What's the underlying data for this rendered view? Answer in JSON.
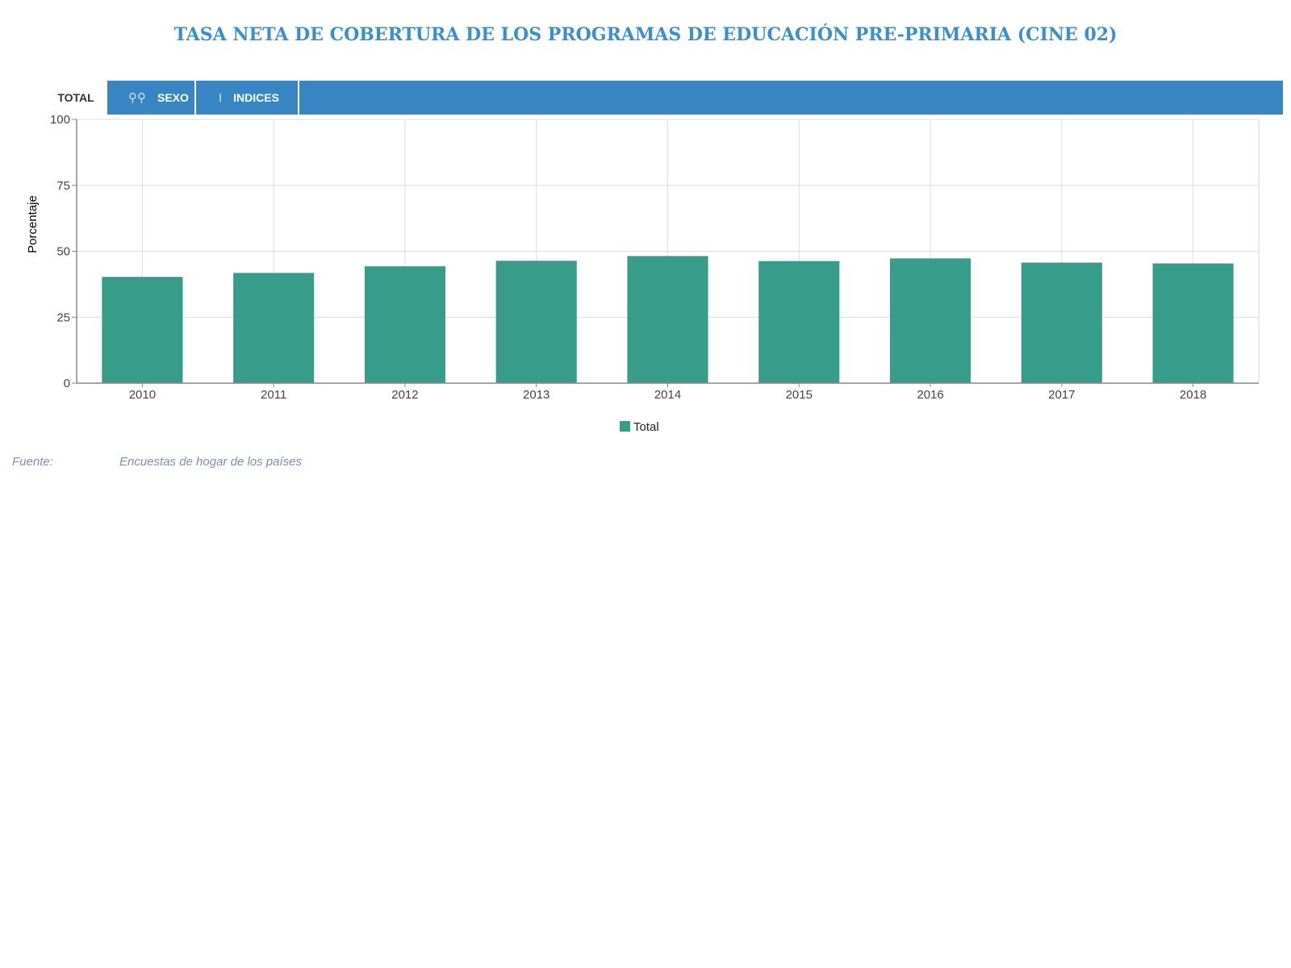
{
  "header": {
    "title": "TASA NETA DE COBERTURA DE LOS PROGRAMAS DE EDUCACIÓN PRE-PRIMARIA (CINE 02)"
  },
  "tabs": [
    {
      "label": "TOTAL",
      "icon": "",
      "active": true
    },
    {
      "label": "SEXO",
      "icon": "gender-icon",
      "active": false
    },
    {
      "label": "INDICES",
      "icon": "cursor-icon",
      "active": false
    }
  ],
  "chart_data": {
    "type": "bar",
    "title": "",
    "xlabel": "",
    "ylabel": "Porcentaje",
    "categories": [
      "2010",
      "2011",
      "2012",
      "2013",
      "2014",
      "2015",
      "2016",
      "2017",
      "2018"
    ],
    "series": [
      {
        "name": "Total",
        "color": "#389c8b",
        "values": [
          40.3,
          41.8,
          44.3,
          46.4,
          48.2,
          46.3,
          47.3,
          45.7,
          45.4
        ]
      }
    ],
    "ylim": [
      0,
      100
    ],
    "yticks": [
      "0",
      "25",
      "50",
      "75",
      "100"
    ],
    "grid": true,
    "legend": "bottom-center"
  },
  "footer": {
    "source_label": "Fuente:",
    "source_value": "Encuestas de hogar de los países"
  },
  "colors": {
    "title": "#3b8fcb",
    "tabbar": "#3885c4",
    "bar": "#389c8b",
    "source": "#7b8fb0"
  }
}
